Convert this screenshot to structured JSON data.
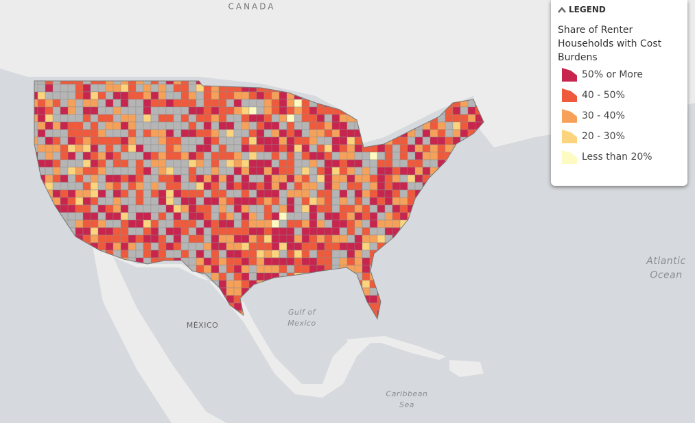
{
  "map": {
    "place_labels": [
      {
        "lines": [
          "CANADA"
        ]
      },
      {
        "lines": [
          "MÉXICO"
        ]
      },
      {
        "lines": [
          "Gulf of",
          "Mexico"
        ]
      },
      {
        "lines": [
          "Atlantic",
          "Ocean"
        ]
      },
      {
        "lines": [
          "Caribbean",
          "Sea"
        ]
      }
    ],
    "no_data_color": "#b5b5b5"
  },
  "legend": {
    "header": "LEGEND",
    "title": "Share of Renter Households with Cost Burdens",
    "items": [
      {
        "label": "50% or More",
        "color": "#c7254e"
      },
      {
        "label": "40 - 50%",
        "color": "#ef5a3c"
      },
      {
        "label": "30 - 40%",
        "color": "#f6a15a"
      },
      {
        "label": "20 - 30%",
        "color": "#fbd47d"
      },
      {
        "label": "Less than 20%",
        "color": "#fefbc2"
      }
    ]
  }
}
